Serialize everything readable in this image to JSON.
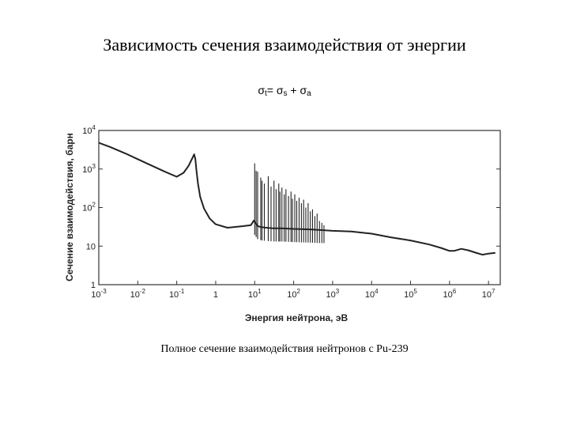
{
  "slide": {
    "title": "Зависимость сечения взаимодействия от энергии",
    "formula": {
      "lhs": "σ",
      "lhs_sub": "t",
      "eq": "= ",
      "term1": "σ",
      "term1_sub": "s",
      "plus": " + ",
      "term2": "σ",
      "term2_sub": "a"
    },
    "caption": "Полное сечение взаимодействия нейтронов с Pu-239"
  },
  "chart_data": {
    "type": "line",
    "title": "",
    "xlabel": "Энергия нейтрона, эВ",
    "ylabel": "Сечение взаимодействия, барн",
    "x_scale": "log",
    "y_scale": "log",
    "xlim": [
      0.001,
      20000000
    ],
    "ylim": [
      1,
      10000
    ],
    "x_ticks": [
      {
        "value": 0.001,
        "base": "10",
        "exp": "-3"
      },
      {
        "value": 0.01,
        "base": "10",
        "exp": "-2"
      },
      {
        "value": 0.1,
        "base": "10",
        "exp": "-1"
      },
      {
        "value": 1,
        "base": "1",
        "exp": ""
      },
      {
        "value": 10,
        "base": "10",
        "exp": "1"
      },
      {
        "value": 100,
        "base": "10",
        "exp": "2"
      },
      {
        "value": 1000,
        "base": "10",
        "exp": "3"
      },
      {
        "value": 10000,
        "base": "10",
        "exp": "4"
      },
      {
        "value": 100000,
        "base": "10",
        "exp": "5"
      },
      {
        "value": 1000000,
        "base": "10",
        "exp": "6"
      },
      {
        "value": 10000000,
        "base": "10",
        "exp": "7"
      }
    ],
    "y_ticks": [
      {
        "value": 1,
        "base": "1",
        "exp": ""
      },
      {
        "value": 10,
        "base": "10",
        "exp": ""
      },
      {
        "value": 100,
        "base": "10",
        "exp": "2"
      },
      {
        "value": 1000,
        "base": "10",
        "exp": "3"
      },
      {
        "value": 10000,
        "base": "10",
        "exp": "4"
      }
    ],
    "grid": false,
    "line_color": "#222222",
    "series": [
      {
        "x": [
          0.001,
          0.002,
          0.005,
          0.01,
          0.02,
          0.05,
          0.1,
          0.15,
          0.2,
          0.25,
          0.28,
          0.3,
          0.32,
          0.35,
          0.4,
          0.5,
          0.7,
          1.0,
          2.0,
          5.0,
          8.0,
          9.5,
          10.5,
          12,
          15,
          20,
          30,
          50,
          100,
          300,
          1000,
          3000,
          10000,
          30000,
          100000,
          300000,
          600000,
          1000000,
          1300000,
          2000000,
          3000000,
          5000000,
          7000000,
          10000000,
          15000000
        ],
        "y": [
          4800,
          3700,
          2500,
          1800,
          1300,
          850,
          630,
          800,
          1200,
          1900,
          2400,
          1800,
          950,
          420,
          190,
          95,
          52,
          37,
          30,
          33,
          35,
          46,
          40,
          33,
          31,
          30,
          29,
          29,
          28,
          27,
          25,
          24,
          21,
          17,
          14,
          11,
          9,
          7.5,
          7.5,
          8.5,
          7.8,
          6.6,
          6.0,
          6.4,
          6.7
        ]
      }
    ],
    "resonances": {
      "x": [
        10.0,
        10.9,
        11.9,
        14.3,
        15.4,
        17.7,
        22.3,
        26.3,
        31.3,
        35.5,
        41.5,
        44.5,
        50.0,
        57.4,
        63.5,
        74.0,
        85.5,
        93.0,
        107,
        120,
        138,
        158,
        180,
        205,
        235,
        268,
        305,
        350,
        400,
        460,
        530,
        600
      ],
      "y": [
        1400,
        900,
        850,
        600,
        500,
        420,
        650,
        350,
        500,
        300,
        420,
        260,
        330,
        220,
        300,
        200,
        260,
        170,
        220,
        150,
        180,
        130,
        160,
        100,
        130,
        80,
        90,
        60,
        70,
        45,
        40,
        35
      ]
    }
  }
}
